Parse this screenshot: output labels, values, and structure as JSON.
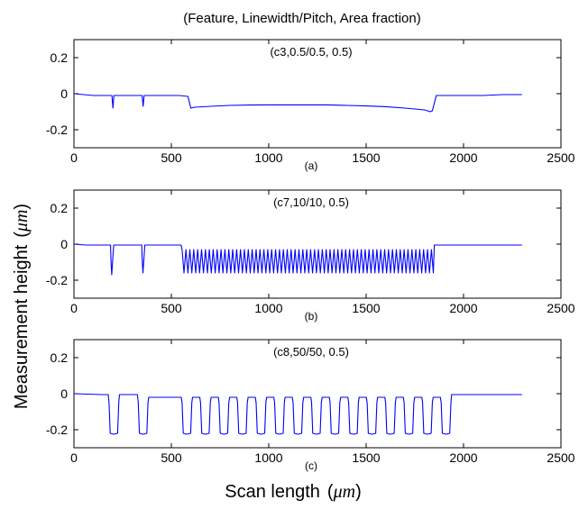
{
  "figure": {
    "title": "(Feature, Linewidth/Pitch, Area fraction)",
    "ylabel": "Measurement height",
    "ylabel_unit": "μm",
    "xlabel": "Scan length",
    "xlabel_unit": "μm",
    "colors": {
      "trace": "#0000ff",
      "axes": "#000000",
      "background": "#ffffff"
    }
  },
  "chart_data": [
    {
      "type": "line",
      "panel": "(a)",
      "annotation": "(c3,0.5/0.5, 0.5)",
      "xlim": [
        0,
        2500
      ],
      "ylim": [
        -0.3,
        0.3
      ],
      "xticks": [
        0,
        500,
        1000,
        1500,
        2000,
        2500
      ],
      "yticks": [
        0.2,
        0,
        -0.2
      ],
      "ytick_labels": [
        "0.2",
        "0",
        "-0.2"
      ],
      "grid": false,
      "series": [
        {
          "profile": "fine",
          "x": [
            0,
            50,
            100,
            150,
            195,
            200,
            205,
            250,
            300,
            350,
            355,
            360,
            365,
            420,
            480,
            540,
            585,
            600,
            620,
            700,
            800,
            900,
            1000,
            1100,
            1200,
            1300,
            1400,
            1500,
            1600,
            1700,
            1750,
            1800,
            1830,
            1840,
            1860,
            1900,
            2000,
            2100,
            2200,
            2300
          ],
          "y": [
            0.0,
            -0.005,
            -0.01,
            -0.01,
            -0.01,
            -0.08,
            -0.01,
            -0.01,
            -0.01,
            -0.01,
            -0.07,
            -0.01,
            -0.01,
            -0.01,
            -0.01,
            -0.01,
            -0.015,
            -0.08,
            -0.075,
            -0.07,
            -0.065,
            -0.063,
            -0.062,
            -0.062,
            -0.062,
            -0.062,
            -0.065,
            -0.068,
            -0.072,
            -0.08,
            -0.085,
            -0.09,
            -0.1,
            -0.095,
            -0.01,
            -0.01,
            -0.01,
            -0.01,
            -0.005,
            -0.005
          ]
        }
      ]
    },
    {
      "type": "line",
      "panel": "(b)",
      "annotation": "(c7,10/10, 0.5)",
      "xlim": [
        0,
        2500
      ],
      "ylim": [
        -0.3,
        0.3
      ],
      "xticks": [
        0,
        500,
        1000,
        1500,
        2000,
        2500
      ],
      "yticks": [
        0.2,
        0,
        -0.2
      ],
      "ytick_labels": [
        "0.2",
        "0",
        "-0.2"
      ],
      "grid": false,
      "series": [
        {
          "profile": "periodic",
          "baseline": -0.005,
          "dips": [
            {
              "x": 190,
              "x_end": 200,
              "y": -0.17
            },
            {
              "x": 350,
              "x_end": 360,
              "y": -0.16
            }
          ],
          "pattern": {
            "x_start": 555,
            "x_end": 1845,
            "period": 20,
            "top": -0.03,
            "bottom": -0.16
          },
          "x_end": 2300
        }
      ]
    },
    {
      "type": "line",
      "panel": "(c)",
      "annotation": "(c8,50/50, 0.5)",
      "xlim": [
        0,
        2500
      ],
      "ylim": [
        -0.3,
        0.3
      ],
      "xticks": [
        0,
        500,
        1000,
        1500,
        2000,
        2500
      ],
      "yticks": [
        0.2,
        0,
        -0.2
      ],
      "ytick_labels": [
        "0.2",
        "0",
        "-0.2"
      ],
      "grid": false,
      "series": [
        {
          "profile": "trenches",
          "baseline": -0.005,
          "trenches": [
            [
              180,
              230
            ],
            [
              330,
              380
            ],
            [
              555,
              605
            ],
            [
              650,
              700
            ],
            [
              745,
              795
            ],
            [
              840,
              890
            ],
            [
              935,
              985
            ],
            [
              1030,
              1080
            ],
            [
              1125,
              1175
            ],
            [
              1220,
              1270
            ],
            [
              1315,
              1365
            ],
            [
              1410,
              1460
            ],
            [
              1505,
              1555
            ],
            [
              1600,
              1650
            ],
            [
              1695,
              1745
            ],
            [
              1790,
              1840
            ],
            [
              1885,
              1935
            ]
          ],
          "trench_depth": -0.22,
          "ridge_level": -0.02,
          "x_end": 2300
        }
      ]
    }
  ]
}
